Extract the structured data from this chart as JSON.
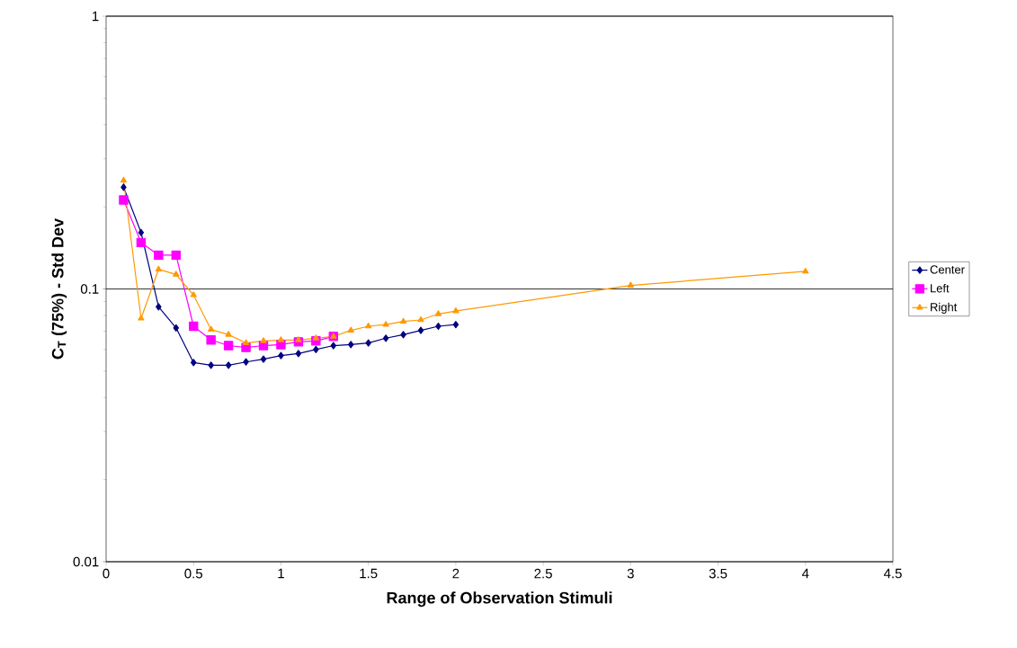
{
  "chart_data": {
    "type": "line",
    "xlabel": "Range of Observation Stimuli",
    "ylabel": "C$_{T}$ (75%) - Std Dev",
    "log": "y",
    "grid": "y",
    "legend": "right",
    "xlim": [
      0,
      4.5
    ],
    "xticks": [
      0,
      0.5,
      1,
      1.5,
      2,
      2.5,
      3,
      3.5,
      4,
      4.5
    ],
    "ylim": [
      0.01,
      1
    ],
    "yticks": [
      0.01,
      0.1,
      1
    ],
    "series": [
      {
        "name": "Center",
        "color": "#000080",
        "marker": "diamond",
        "x": [
          0.1,
          0.2,
          0.3,
          0.4,
          0.5,
          0.6,
          0.7,
          0.8,
          0.9,
          1.0,
          1.1,
          1.2,
          1.3,
          1.4,
          1.5,
          1.6,
          1.7,
          1.8,
          1.9,
          2.0
        ],
        "values": [
          0.236,
          0.161,
          0.086,
          0.072,
          0.0537,
          0.0525,
          0.0525,
          0.054,
          0.0553,
          0.057,
          0.058,
          0.06,
          0.062,
          0.0625,
          0.0634,
          0.066,
          0.068,
          0.0705,
          0.073,
          0.074
        ]
      },
      {
        "name": "Left",
        "color": "#ff00ff",
        "marker": "square",
        "x": [
          0.1,
          0.2,
          0.3,
          0.4,
          0.5,
          0.6,
          0.7,
          0.8,
          0.9,
          1.0,
          1.1,
          1.2,
          1.3
        ],
        "values": [
          0.212,
          0.148,
          0.133,
          0.133,
          0.073,
          0.065,
          0.062,
          0.061,
          0.062,
          0.0625,
          0.064,
          0.0645,
          0.067
        ]
      },
      {
        "name": "Right",
        "color": "#ff9900",
        "marker": "triangle",
        "x": [
          0.1,
          0.2,
          0.3,
          0.4,
          0.5,
          0.6,
          0.7,
          0.8,
          0.9,
          1.0,
          1.1,
          1.2,
          1.3,
          1.4,
          1.5,
          1.6,
          1.7,
          1.8,
          1.9,
          2.0,
          3.0,
          4.0
        ],
        "values": [
          0.25,
          0.078,
          0.118,
          0.113,
          0.095,
          0.071,
          0.068,
          0.0634,
          0.0645,
          0.065,
          0.065,
          0.066,
          0.067,
          0.0705,
          0.073,
          0.074,
          0.076,
          0.077,
          0.081,
          0.083,
          0.103,
          0.116
        ]
      }
    ]
  }
}
